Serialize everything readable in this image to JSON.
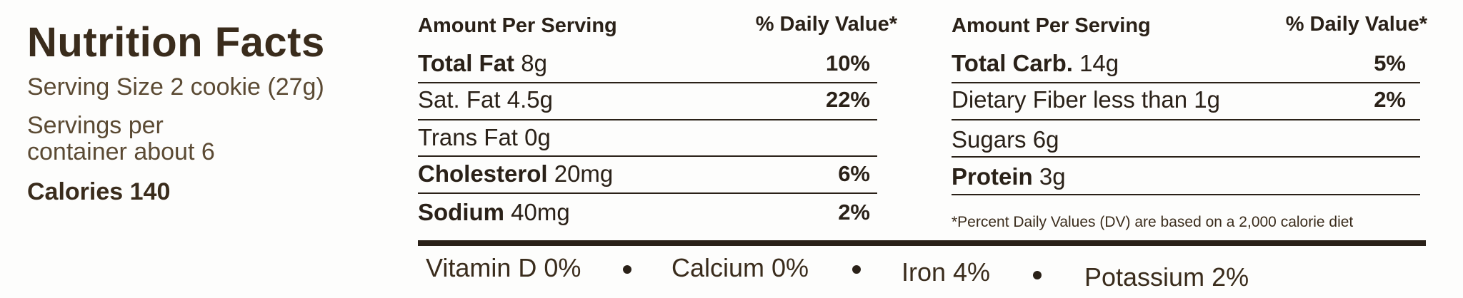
{
  "title": "Nutrition Facts",
  "serving_size": "Serving Size 2 cookie (27g)",
  "servings": "Servings per container about 6",
  "calories": "Calories 140",
  "left_table": {
    "header": {
      "amount": "Amount Per Serving",
      "dv": "% Daily Value*"
    },
    "rows": [
      {
        "name": "Total Fat",
        "bold": true,
        "amount": "8g",
        "dv": "10%"
      },
      {
        "name": "Sat. Fat",
        "bold": false,
        "amount": "4.5g",
        "dv": "22%"
      },
      {
        "name": "Trans Fat",
        "bold": false,
        "amount": "0g"
      },
      {
        "name": "Cholesterol",
        "bold": true,
        "amount": "20mg",
        "dv": "6%"
      },
      {
        "name": "Sodium",
        "bold": true,
        "amount": "40mg",
        "dv": "2%"
      }
    ]
  },
  "right_table": {
    "header": {
      "amount": "Amount Per Serving",
      "dv": "% Daily Value*"
    },
    "rows": [
      {
        "name": "Total Carb.",
        "bold": true,
        "amount": "14g",
        "dv": "5%"
      },
      {
        "name": "Dietary Fiber",
        "bold": false,
        "amount": "less than 1g",
        "dv": "2%"
      },
      {
        "name": "Sugars",
        "bold": false,
        "amount": "6g"
      },
      {
        "name": "Protein",
        "bold": true,
        "amount": "3g"
      }
    ],
    "footnote": "*Percent Daily Values (DV) are based on a 2,000 calorie diet"
  },
  "vitamins": [
    "Vitamin D 0%",
    "Calcium 0%",
    "Iron 4%",
    "Potassium 2%"
  ]
}
